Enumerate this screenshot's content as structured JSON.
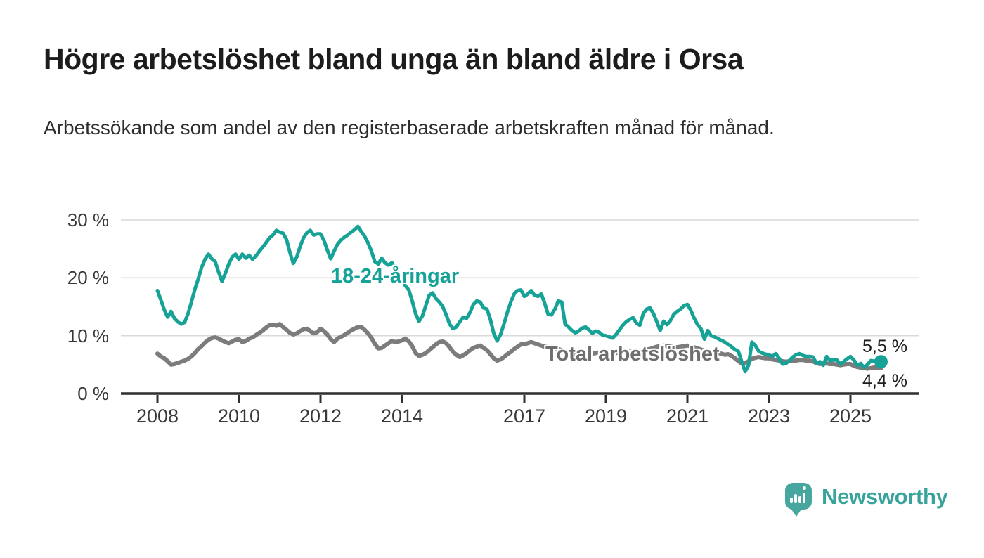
{
  "header": {
    "title": "Högre arbetslöshet bland unga än bland äldre i Orsa",
    "subtitle": "Arbetssökande som andel av den registerbaserade arbetskraften månad för månad."
  },
  "chart_data": {
    "type": "line",
    "title": "Högre arbetslöshet bland unga än bland äldre i Orsa",
    "subtitle": "Arbetssökande som andel av den registerbaserade arbetskraften månad för månad.",
    "unit": "%",
    "frequency": "monthly",
    "x_start": "2008-01",
    "x_end": "2025-10",
    "grid": "horizontal",
    "ylim": [
      0,
      32
    ],
    "yticks": [
      {
        "value": 0,
        "label": "0 %"
      },
      {
        "value": 10,
        "label": "10 %"
      },
      {
        "value": 20,
        "label": "20 %"
      },
      {
        "value": 30,
        "label": "30 %"
      }
    ],
    "xticks": [
      {
        "year": 2008,
        "label": "2008"
      },
      {
        "year": 2010,
        "label": "2010"
      },
      {
        "year": 2012,
        "label": "2012"
      },
      {
        "year": 2014,
        "label": "2014"
      },
      {
        "year": 2017,
        "label": "2017"
      },
      {
        "year": 2019,
        "label": "2019"
      },
      {
        "year": 2021,
        "label": "2021"
      },
      {
        "year": 2023,
        "label": "2023"
      },
      {
        "year": 2025,
        "label": "2025"
      }
    ],
    "series": [
      {
        "name": "18-24-åringar",
        "color": "#16a296",
        "end_label": "5,5 %",
        "end_value": 5.5,
        "values": [
          17.8,
          16.2,
          14.5,
          13.2,
          14.2,
          13.0,
          12.4,
          12.0,
          12.3,
          13.8,
          15.8,
          18.0,
          19.8,
          21.8,
          23.2,
          24.1,
          23.3,
          22.8,
          21.0,
          19.4,
          20.8,
          22.4,
          23.6,
          24.1,
          23.2,
          24.1,
          23.4,
          23.9,
          23.2,
          23.8,
          24.6,
          25.3,
          26.1,
          26.9,
          27.4,
          28.2,
          27.9,
          27.7,
          26.6,
          24.4,
          22.5,
          23.6,
          25.4,
          26.9,
          27.8,
          28.2,
          27.4,
          27.6,
          27.6,
          26.5,
          24.8,
          23.3,
          24.6,
          25.8,
          26.5,
          27.0,
          27.4,
          27.9,
          28.3,
          28.9,
          28.0,
          27.2,
          26.0,
          24.6,
          22.8,
          22.4,
          23.4,
          22.6,
          22.2,
          22.6,
          21.8,
          20.8,
          19.8,
          18.6,
          17.9,
          16.0,
          13.8,
          12.5,
          13.4,
          15.2,
          17.0,
          17.4,
          16.4,
          15.8,
          15.0,
          13.6,
          12.0,
          11.2,
          11.5,
          12.4,
          13.2,
          13.0,
          14.0,
          15.4,
          16.0,
          15.8,
          14.8,
          14.6,
          12.8,
          10.4,
          9.1,
          10.2,
          12.0,
          14.0,
          15.8,
          17.2,
          17.8,
          17.9,
          16.8,
          17.2,
          17.8,
          17.0,
          16.8,
          17.2,
          15.6,
          13.7,
          13.6,
          14.6,
          16.0,
          15.8,
          12.0,
          11.5,
          10.9,
          10.5,
          10.8,
          11.3,
          11.5,
          11.0,
          10.4,
          10.8,
          10.6,
          10.1,
          10.0,
          9.8,
          9.6,
          10.2,
          11.0,
          11.8,
          12.4,
          12.8,
          13.1,
          12.2,
          11.8,
          13.8,
          14.6,
          14.8,
          13.8,
          12.4,
          10.9,
          12.5,
          11.9,
          12.6,
          13.7,
          14.2,
          14.6,
          15.2,
          15.4,
          14.4,
          13.0,
          11.9,
          11.2,
          9.4,
          10.9,
          10.0,
          9.8,
          9.5,
          9.2,
          8.9,
          8.5,
          8.1,
          7.6,
          7.3,
          5.5,
          3.8,
          4.9,
          8.9,
          8.3,
          7.3,
          7.0,
          6.8,
          6.7,
          6.4,
          6.9,
          6.1,
          5.1,
          5.2,
          5.7,
          6.3,
          6.7,
          6.9,
          6.6,
          6.4,
          6.4,
          6.3,
          5.2,
          5.5,
          4.9,
          6.4,
          5.7,
          5.8,
          5.8,
          5.1,
          5.5,
          6.0,
          6.4,
          5.8,
          4.9,
          5.2,
          4.5,
          5.0,
          5.7,
          5.6,
          5.6,
          5.5
        ]
      },
      {
        "name": "Total arbetslöshet",
        "color": "#7c7c7c",
        "end_label": "4,4 %",
        "end_value": 4.4,
        "values": [
          6.9,
          6.4,
          6.1,
          5.6,
          5.0,
          5.1,
          5.3,
          5.5,
          5.7,
          6.0,
          6.4,
          7.0,
          7.7,
          8.2,
          8.8,
          9.3,
          9.6,
          9.7,
          9.5,
          9.2,
          8.9,
          8.7,
          9.0,
          9.3,
          9.4,
          8.9,
          9.1,
          9.5,
          9.7,
          10.1,
          10.5,
          10.9,
          11.4,
          11.8,
          11.9,
          11.7,
          12.0,
          11.5,
          11.0,
          10.5,
          10.2,
          10.4,
          10.8,
          11.1,
          11.2,
          10.8,
          10.4,
          10.6,
          11.2,
          10.8,
          10.2,
          9.4,
          8.9,
          9.5,
          9.8,
          10.1,
          10.5,
          10.9,
          11.2,
          11.5,
          11.5,
          11.0,
          10.4,
          9.6,
          8.6,
          7.8,
          7.9,
          8.3,
          8.7,
          9.1,
          8.9,
          9.0,
          9.2,
          9.5,
          9.0,
          8.2,
          7.0,
          6.5,
          6.7,
          7.0,
          7.5,
          8.0,
          8.5,
          8.9,
          9.0,
          8.7,
          8.0,
          7.2,
          6.7,
          6.3,
          6.6,
          7.0,
          7.5,
          7.9,
          8.1,
          8.3,
          7.9,
          7.5,
          6.8,
          6.1,
          5.7,
          5.9,
          6.3,
          6.8,
          7.2,
          7.7,
          8.1,
          8.5,
          8.5,
          8.7,
          8.9,
          8.7,
          8.5,
          8.3,
          8.1,
          8.0,
          7.9,
          7.8,
          7.7,
          7.5,
          7.2,
          7.0,
          6.8,
          6.6,
          6.5,
          6.4,
          6.5,
          6.7,
          6.9,
          7.0,
          7.1,
          7.2,
          7.3,
          7.2,
          7.1,
          7.0,
          7.1,
          7.2,
          7.3,
          7.4,
          7.4,
          7.3,
          7.2,
          7.5,
          7.6,
          7.7,
          7.9,
          8.1,
          8.2,
          8.3,
          8.2,
          8.1,
          8.0,
          8.0,
          8.1,
          8.2,
          8.3,
          8.2,
          8.0,
          7.8,
          7.6,
          7.4,
          7.3,
          7.2,
          7.1,
          7.0,
          6.9,
          6.7,
          6.8,
          6.5,
          6.1,
          5.6,
          5.2,
          5.3,
          5.6,
          6.0,
          6.2,
          6.3,
          6.2,
          6.1,
          6.1,
          5.9,
          5.8,
          5.7,
          5.6,
          5.5,
          5.6,
          5.7,
          5.7,
          5.8,
          5.8,
          5.7,
          5.7,
          5.5,
          5.3,
          5.1,
          5.2,
          5.2,
          5.1,
          5.1,
          5.0,
          4.9,
          5.0,
          5.1,
          5.1,
          4.8,
          4.6,
          4.5,
          4.4,
          4.3,
          4.4,
          4.5,
          4.5,
          4.4
        ]
      }
    ],
    "colors": {
      "grid": "#d9d9d9",
      "axis": "#2f2f2f",
      "young_line": "#16a296",
      "total_line": "#7c7c7c"
    }
  },
  "footer": {
    "brand": "Newsworthy"
  }
}
